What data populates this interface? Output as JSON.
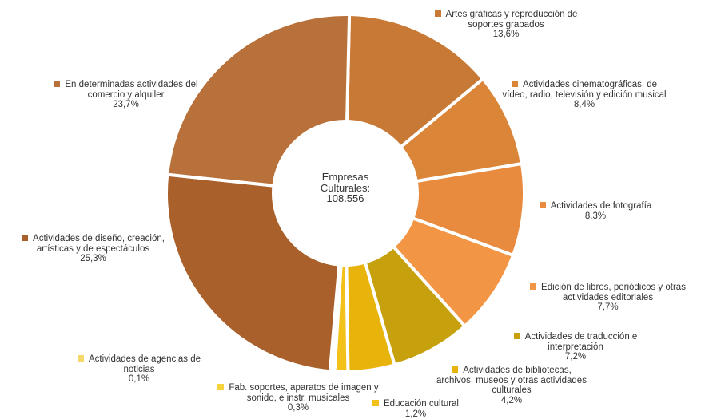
{
  "chart_data": {
    "type": "pie",
    "center_text": [
      "Empresas",
      "Culturales:",
      "108.556"
    ],
    "slices": [
      {
        "label": "Artes gráficas y reproducción de soportes grabados",
        "value": 13.6,
        "value_label": "13,6%",
        "color": "#c87936"
      },
      {
        "label": "Actividades cinematográficas, de vídeo, radio, televisión y edición musical",
        "value": 8.4,
        "value_label": "8,4%",
        "color": "#db8539"
      },
      {
        "label": "Actividades de fotografía",
        "value": 8.3,
        "value_label": "8,3%",
        "color": "#e98b3e"
      },
      {
        "label": "Edición de libros, periódicos y otras actividades editoriales",
        "value": 7.7,
        "value_label": "7,7%",
        "color": "#f29545"
      },
      {
        "label": "Actividades de traducción e interpretación",
        "value": 7.2,
        "value_label": "7,2%",
        "color": "#c7a10d"
      },
      {
        "label": "Actividades de bibliotecas, archivos, museos y otras actividades culturales",
        "value": 4.2,
        "value_label": "4,2%",
        "color": "#e8b40b"
      },
      {
        "label": "Educación cultural",
        "value": 1.2,
        "value_label": "1,2%",
        "color": "#f2c11a"
      },
      {
        "label": "Fab. soportes, aparatos de imagen y sonido, e instr. musicales",
        "value": 0.3,
        "value_label": "0,3%",
        "color": "#f7d33c"
      },
      {
        "label": "Actividades de agencias de noticias",
        "value": 0.1,
        "value_label": "0,1%",
        "color": "#f7d86a"
      },
      {
        "label": "Actividades de diseño, creación, artísticas y de espectáculos",
        "value": 25.3,
        "value_label": "25,3%",
        "color": "#a9602a"
      },
      {
        "label": "En determinadas actividades del comercio y alquiler",
        "value": 23.7,
        "value_label": "23,7%",
        "color": "#b8713a"
      }
    ]
  }
}
